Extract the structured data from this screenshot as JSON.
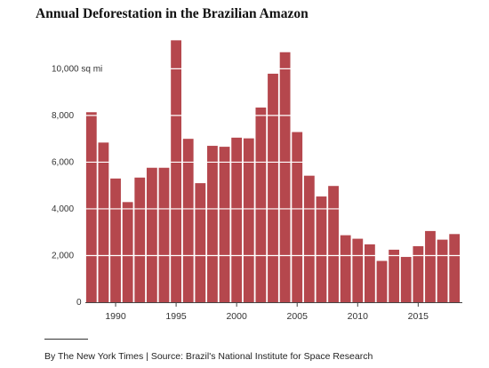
{
  "chart_data": {
    "type": "bar",
    "title": "Annual Deforestation in the Brazilian Amazon",
    "unit": "sq mi",
    "categories": [
      1988,
      1989,
      1990,
      1991,
      1992,
      1993,
      1994,
      1995,
      1996,
      1997,
      1998,
      1999,
      2000,
      2001,
      2002,
      2003,
      2004,
      2005,
      2006,
      2007,
      2008,
      2009,
      2010,
      2011,
      2012,
      2013,
      2014,
      2015,
      2016,
      2017,
      2018
    ],
    "values": [
      8140,
      6840,
      5300,
      4290,
      5340,
      5760,
      5760,
      11220,
      7000,
      5100,
      6700,
      6660,
      7050,
      7020,
      8340,
      9790,
      10710,
      7290,
      5420,
      4530,
      4980,
      2870,
      2720,
      2480,
      1770,
      2250,
      1940,
      2400,
      3050,
      2680,
      2920
    ],
    "ylim": [
      0,
      11500
    ],
    "yticks": [
      0,
      2000,
      4000,
      6000,
      8000,
      10000
    ],
    "ytick_labels": [
      "0",
      "2,000",
      "4,000",
      "6,000",
      "8,000",
      "10,000 sq mi"
    ],
    "xticks": [
      1990,
      1995,
      2000,
      2005,
      2010,
      2015
    ],
    "xtick_labels": [
      "1990",
      "1995",
      "2000",
      "2005",
      "2010",
      "2015"
    ],
    "grid": "horizontal lines drawn across the bars",
    "colors": {
      "bar": "#b5474d",
      "grid": "#ffffff",
      "axis": "#444444",
      "text": "#333333"
    }
  },
  "footer": {
    "credit": "By The New York Times | Source: Brazil's National Institute for Space Research"
  }
}
